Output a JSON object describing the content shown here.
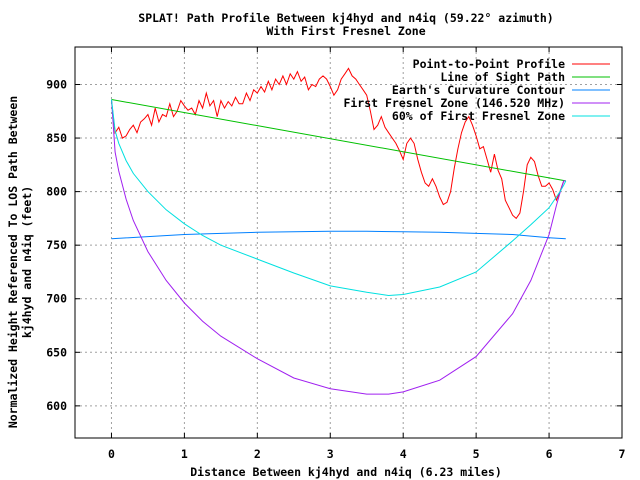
{
  "chart_data": {
    "type": "line",
    "title": [
      "SPLAT! Path Profile Between kj4hyd and n4iq (59.22° azimuth)",
      "With First Fresnel Zone"
    ],
    "xlabel": "Distance Between kj4hyd and n4iq (6.23 miles)",
    "ylabel": [
      "Normalized Height Referenced To LOS Path Between",
      "kj4hyd and n4iq (feet)"
    ],
    "xlim": [
      -0.5,
      7
    ],
    "ylim": [
      570,
      935
    ],
    "xticks": [
      0,
      1,
      2,
      3,
      4,
      5,
      6,
      7
    ],
    "yticks": [
      600,
      650,
      700,
      750,
      800,
      850,
      900
    ],
    "grid": true,
    "legend_position": "top-right",
    "series": [
      {
        "name": "Point-to-Point Profile",
        "color": "#ff0000",
        "x": [
          0,
          0.05,
          0.1,
          0.15,
          0.2,
          0.25,
          0.3,
          0.35,
          0.4,
          0.45,
          0.5,
          0.55,
          0.6,
          0.65,
          0.7,
          0.75,
          0.8,
          0.85,
          0.9,
          0.95,
          1.0,
          1.05,
          1.1,
          1.15,
          1.2,
          1.25,
          1.3,
          1.35,
          1.4,
          1.45,
          1.5,
          1.55,
          1.6,
          1.65,
          1.7,
          1.75,
          1.8,
          1.85,
          1.9,
          1.95,
          2.0,
          2.05,
          2.1,
          2.15,
          2.2,
          2.25,
          2.3,
          2.35,
          2.4,
          2.45,
          2.5,
          2.55,
          2.6,
          2.65,
          2.7,
          2.75,
          2.8,
          2.85,
          2.9,
          2.95,
          3.0,
          3.05,
          3.1,
          3.15,
          3.2,
          3.25,
          3.3,
          3.35,
          3.4,
          3.45,
          3.5,
          3.55,
          3.6,
          3.65,
          3.7,
          3.75,
          3.8,
          3.85,
          3.9,
          3.95,
          4.0,
          4.05,
          4.1,
          4.15,
          4.2,
          4.25,
          4.3,
          4.35,
          4.4,
          4.45,
          4.5,
          4.55,
          4.6,
          4.65,
          4.7,
          4.75,
          4.8,
          4.85,
          4.9,
          4.95,
          5.0,
          5.05,
          5.1,
          5.15,
          5.2,
          5.25,
          5.3,
          5.35,
          5.4,
          5.45,
          5.5,
          5.55,
          5.6,
          5.65,
          5.7,
          5.75,
          5.8,
          5.85,
          5.9,
          5.95,
          6.0,
          6.05,
          6.1,
          6.15,
          6.2
        ],
        "values": [
          885,
          855,
          860,
          850,
          852,
          858,
          862,
          855,
          865,
          868,
          872,
          862,
          878,
          865,
          872,
          870,
          882,
          870,
          875,
          885,
          880,
          876,
          878,
          872,
          885,
          878,
          892,
          880,
          885,
          870,
          885,
          878,
          884,
          880,
          888,
          882,
          882,
          892,
          885,
          895,
          892,
          898,
          893,
          903,
          895,
          905,
          900,
          908,
          900,
          910,
          905,
          912,
          903,
          907,
          895,
          900,
          898,
          905,
          908,
          905,
          898,
          890,
          895,
          905,
          910,
          915,
          908,
          905,
          900,
          895,
          890,
          875,
          858,
          862,
          870,
          860,
          855,
          850,
          845,
          838,
          830,
          845,
          850,
          845,
          830,
          818,
          808,
          805,
          812,
          805,
          795,
          788,
          790,
          800,
          822,
          840,
          855,
          865,
          870,
          862,
          852,
          840,
          842,
          830,
          818,
          835,
          820,
          812,
          792,
          785,
          778,
          775,
          780,
          800,
          825,
          832,
          828,
          815,
          805,
          805,
          808,
          802,
          792,
          800,
          810
        ]
      },
      {
        "name": "Line of Sight Path",
        "color": "#00c000",
        "x": [
          0,
          6.23
        ],
        "values": [
          886,
          810
        ]
      },
      {
        "name": "Earth's Curvature Contour",
        "color": "#0080ff",
        "x": [
          0,
          0.5,
          1,
          1.5,
          2,
          2.5,
          3,
          3.5,
          4,
          4.5,
          5,
          5.5,
          6,
          6.23
        ],
        "values": [
          756,
          758,
          760,
          761,
          762,
          762.5,
          763,
          763,
          762.5,
          762,
          761,
          760,
          757,
          756
        ]
      },
      {
        "name": "First Fresnel Zone (146.520 MHz)",
        "color": "#a020f0",
        "x": [
          0,
          0.05,
          0.1,
          0.2,
          0.3,
          0.5,
          0.75,
          1,
          1.25,
          1.5,
          2,
          2.5,
          3,
          3.5,
          3.8,
          4,
          4.5,
          5,
          5.5,
          5.75,
          6,
          6.1,
          6.15,
          6.2,
          6.23
        ],
        "values": [
          886,
          837,
          819,
          793,
          773,
          744,
          717,
          696,
          679,
          665,
          644,
          626,
          616,
          611,
          611,
          613,
          624,
          646,
          686,
          717,
          760,
          787,
          799,
          810,
          810
        ]
      },
      {
        "name": "60% of First Fresnel Zone",
        "color": "#00e0e0",
        "x": [
          0,
          0.05,
          0.1,
          0.2,
          0.3,
          0.5,
          0.75,
          1,
          1.25,
          1.5,
          2,
          2.5,
          3,
          3.5,
          3.8,
          4,
          4.5,
          5,
          5.5,
          5.75,
          6,
          6.1,
          6.15,
          6.2,
          6.23
        ],
        "values": [
          886,
          857,
          845,
          829,
          817,
          800,
          783,
          770,
          759,
          750,
          737,
          724,
          712,
          706,
          703,
          704,
          711,
          725,
          754,
          769,
          785,
          795,
          800,
          806,
          810
        ]
      }
    ]
  }
}
